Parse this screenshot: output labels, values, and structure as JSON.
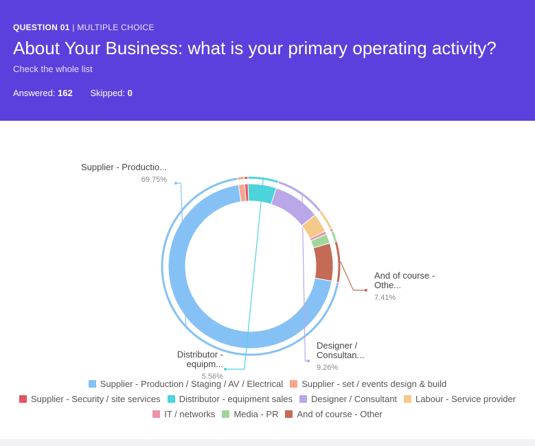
{
  "question": {
    "number_label": "QUESTION 01",
    "type_label": "MULTIPLE CHOICE",
    "title": "About Your Business: what is your primary operating activity?",
    "subtitle": "Check the whole list",
    "answered_label": "Answered:",
    "answered_value": "162",
    "skipped_label": "Skipped:",
    "skipped_value": "0"
  },
  "colors": {
    "header_bg": "#5c40dd"
  },
  "chart_data": {
    "type": "pie",
    "variant": "donut",
    "series": [
      {
        "name": "Supplier - Production / Staging / AV / Electrical",
        "value": 69.75,
        "color": "#85c1f5",
        "callout": "Supplier - Productio...",
        "callout_line2": "",
        "pct_label": "69.75%"
      },
      {
        "name": "Supplier - set / events design & build",
        "value": 1.23,
        "color": "#f7a58e",
        "callout": "",
        "pct_label": ""
      },
      {
        "name": "Supplier - Security / site services",
        "value": 0.62,
        "color": "#e05560",
        "callout": "",
        "pct_label": ""
      },
      {
        "name": "Distributor - equipment sales",
        "value": 5.56,
        "color": "#4dd3db",
        "callout": "Distributor -",
        "callout_line2": "equipm...",
        "pct_label": "5.56%"
      },
      {
        "name": "Designer / Consultant",
        "value": 9.26,
        "color": "#b9a7e8",
        "callout": "Designer /",
        "callout_line2": "Consultan...",
        "pct_label": "9.26%"
      },
      {
        "name": "Labour - Service provider",
        "value": 3.7,
        "color": "#f5c98a",
        "callout": "",
        "pct_label": ""
      },
      {
        "name": "IT / networks",
        "value": 0.62,
        "color": "#ee92a8",
        "callout": "",
        "pct_label": ""
      },
      {
        "name": "Media - PR",
        "value": 1.85,
        "color": "#9fd69a",
        "callout": "",
        "pct_label": ""
      },
      {
        "name": "And of course - Other",
        "value": 7.41,
        "color": "#c46a55",
        "callout": "And of course -",
        "callout_line2": "Othe...",
        "pct_label": "7.41%"
      }
    ],
    "legend_position": "bottom"
  }
}
